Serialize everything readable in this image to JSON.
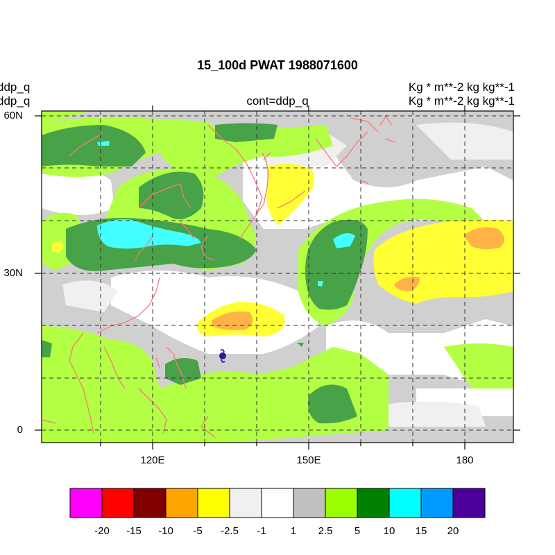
{
  "title": "15_100d PWAT  1988071600",
  "left_label_1": "ddp_q",
  "left_label_2": "ddp_q",
  "center_label": "cont=ddp_q",
  "right_label_1": "Kg  * m**-2 kg kg**-1",
  "right_label_2": "Kg  * m**-2 kg kg**-1",
  "lat_ticks": [
    "60N",
    "30N",
    "0"
  ],
  "lon_ticks": [
    "120E",
    "150E",
    "180"
  ],
  "colorbar": {
    "labels": [
      "-20",
      "-15",
      "-10",
      "-5",
      "-2.5",
      "-1",
      "1",
      "2.5",
      "5",
      "10",
      "15",
      "20"
    ],
    "colors": [
      "#ff00ff",
      "#ff0000",
      "#800000",
      "#ffa500",
      "#ffff00",
      "#f0f0f0",
      "#ffffff",
      "#c0c0c0",
      "#99ff00",
      "#008000",
      "#00ffff",
      "#0099ff",
      "#4b0099"
    ]
  },
  "map_colors": {
    "coast": "#ff7777",
    "typhoon_symbol": "#2d1a9e"
  },
  "typhoon_icon": "typhoon-symbol-icon"
}
